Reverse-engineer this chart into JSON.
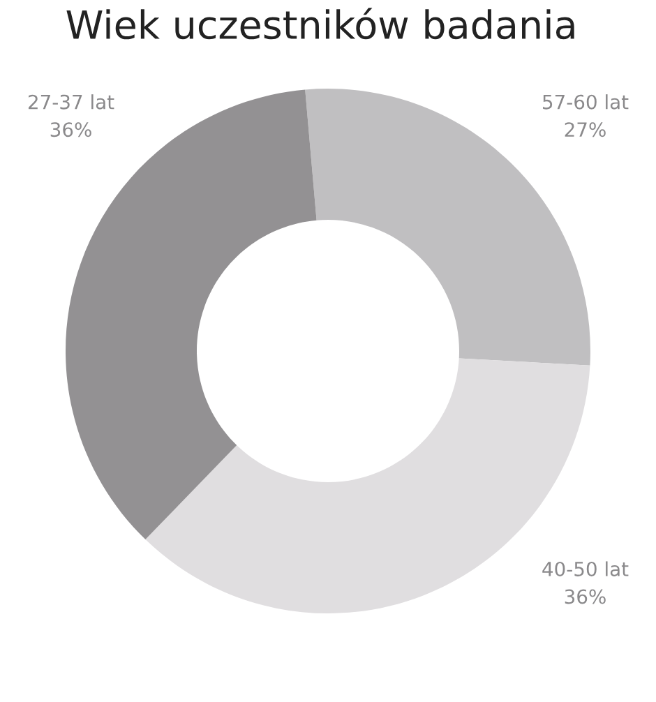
{
  "chart_data": {
    "type": "donut",
    "title": "Wiek uczestników badania",
    "categories": [
      "57-60 lat",
      "40-50 lat",
      "27-37 lat"
    ],
    "values": [
      27,
      36,
      36
    ],
    "value_labels": [
      "27%",
      "36%",
      "36%"
    ],
    "colors": [
      "#c0bfc1",
      "#e0dee0",
      "#939193"
    ],
    "legend": false
  }
}
